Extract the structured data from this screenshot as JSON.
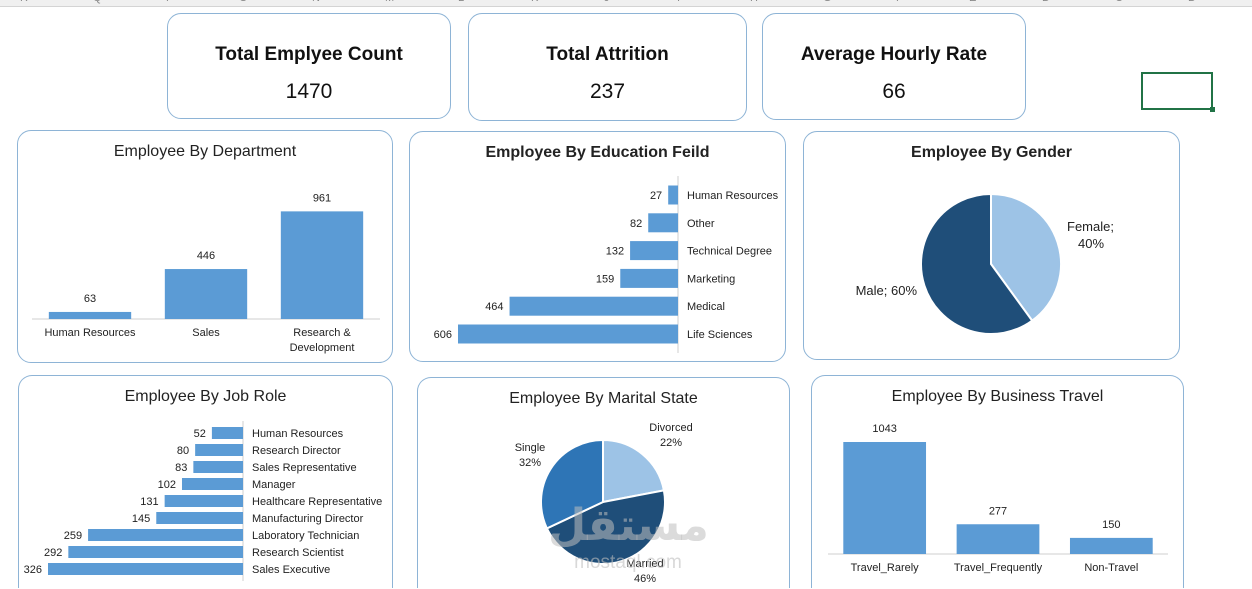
{
  "colors": {
    "bar": "#5b9bd5",
    "dark": "#1f4e79",
    "mid": "#2e75b6",
    "light": "#9dc3e6",
    "border": "#8eb4d6"
  },
  "sheet": {
    "columns": [
      "R",
      "Q",
      "P",
      "O",
      "N",
      "M",
      "L",
      "K",
      "J",
      "I",
      "H",
      "G",
      "F",
      "E",
      "D",
      "C",
      "B"
    ]
  },
  "kpis": [
    {
      "title": "Total Emplyee Count",
      "value": "1470"
    },
    {
      "title": "Total Attrition",
      "value": "237"
    },
    {
      "title": "Average Hourly Rate",
      "value": "66"
    }
  ],
  "charts": {
    "department": {
      "title": "Employee By Department"
    },
    "education": {
      "title": "Employee By Education Feild"
    },
    "gender": {
      "title": "Employee By Gender"
    },
    "jobrole": {
      "title": "Employee By Job Role"
    },
    "marital": {
      "title": "Employee By Marital State"
    },
    "travel": {
      "title": "Employee By Business Travel"
    }
  },
  "watermark": {
    "arabic": "مستقل",
    "latin": "mostaql.com"
  },
  "chart_data": [
    {
      "id": "department",
      "type": "bar",
      "title": "Employee By Department",
      "categories": [
        "Human Resources",
        "Sales",
        "Research & Development"
      ],
      "category_lines": [
        [
          "Human Resources"
        ],
        [
          "Sales"
        ],
        [
          "Research &",
          "Development"
        ]
      ],
      "values": [
        63,
        446,
        961
      ],
      "ylim": [
        0,
        1000
      ]
    },
    {
      "id": "education",
      "type": "bar",
      "orientation": "horizontal",
      "title": "Employee By Education Feild",
      "categories": [
        "Human Resources",
        "Other",
        "Technical Degree",
        "Marketing",
        "Medical",
        "Life Sciences"
      ],
      "values": [
        27,
        82,
        132,
        159,
        464,
        606
      ],
      "xlim": [
        0,
        606
      ]
    },
    {
      "id": "gender",
      "type": "pie",
      "title": "Employee By Gender",
      "slices": [
        {
          "label": "Female",
          "value": 40,
          "text": "Female;",
          "pct": "40%"
        },
        {
          "label": "Male",
          "value": 60,
          "text": "Male; 60%",
          "pct": ""
        }
      ]
    },
    {
      "id": "jobrole",
      "type": "bar",
      "orientation": "horizontal",
      "title": "Employee By Job Role",
      "categories": [
        "Human Resources",
        "Research Director",
        "Sales Representative",
        "Manager",
        "Healthcare Representative",
        "Manufacturing Director",
        "Laboratory Technician",
        "Research Scientist",
        "Sales Executive"
      ],
      "values": [
        52,
        80,
        83,
        102,
        131,
        145,
        259,
        292,
        326
      ],
      "xlim": [
        0,
        326
      ]
    },
    {
      "id": "marital",
      "type": "pie",
      "title": "Employee By Marital State",
      "slices": [
        {
          "label": "Divorced",
          "value": 22,
          "pct": "22%"
        },
        {
          "label": "Married",
          "value": 46,
          "pct": "46%"
        },
        {
          "label": "Single",
          "value": 32,
          "pct": "32%"
        }
      ]
    },
    {
      "id": "travel",
      "type": "bar",
      "title": "Employee By Business Travel",
      "categories": [
        "Travel_Rarely",
        "Travel_Frequently",
        "Non-Travel"
      ],
      "values": [
        1043,
        277,
        150
      ],
      "ylim": [
        0,
        1043
      ]
    }
  ]
}
